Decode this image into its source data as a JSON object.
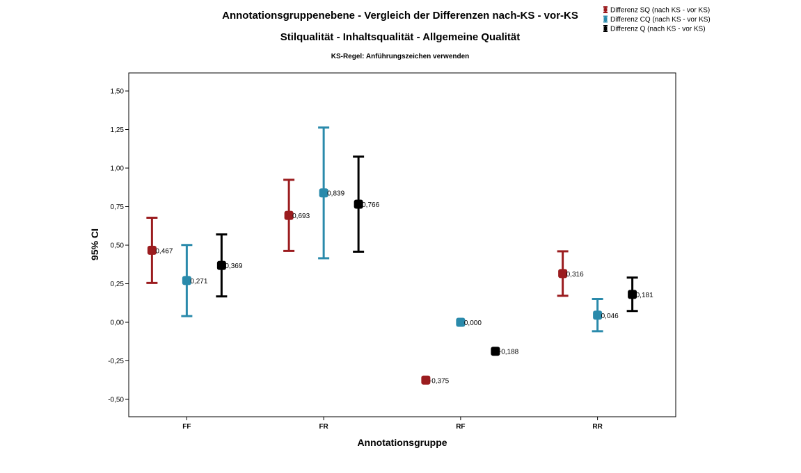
{
  "chart_data": {
    "type": "errorbar",
    "title": "Annotationsgruppenebene - Vergleich der Differenzen nach-KS - vor-KS",
    "subtitle": "Stilqualität - Inhaltsqualität - Allgemeine Qualität",
    "subtitle2": "KS-Regel: Anführungszeichen verwenden",
    "xlabel": "Annotationsgruppe",
    "ylabel": "95% CI",
    "ylim": [
      -0.6,
      1.6
    ],
    "yticks": [
      "1,50",
      "1,25",
      "1,00",
      "0,75",
      "0,50",
      "0,25",
      "0,00",
      "-0,25",
      "-0,50"
    ],
    "ytick_values": [
      1.5,
      1.25,
      1.0,
      0.75,
      0.5,
      0.25,
      0.0,
      -0.25,
      -0.5
    ],
    "categories": [
      "FF",
      "FR",
      "RF",
      "RR"
    ],
    "legend_position": "top-right",
    "series": [
      {
        "name": "Differenz SQ (nach KS - vor KS)",
        "color": "#9b1c1f",
        "means": [
          0.467,
          0.693,
          -0.375,
          0.316
        ],
        "lower": [
          0.255,
          0.462,
          null,
          0.172
        ],
        "upper": [
          0.678,
          0.924,
          null,
          0.46
        ],
        "labels": [
          "0,467",
          "0,693",
          "-0,375",
          "0,316"
        ]
      },
      {
        "name": "Differenz CQ (nach KS - vor KS)",
        "color": "#2a8aab",
        "means": [
          0.271,
          0.839,
          0.0,
          0.046
        ],
        "lower": [
          0.04,
          0.415,
          null,
          -0.058
        ],
        "upper": [
          0.501,
          1.263,
          null,
          0.151
        ],
        "labels": [
          "0,271",
          "0,839",
          "0,000",
          "0,046"
        ]
      },
      {
        "name": "Differenz Q (nach KS - vor KS)",
        "color": "#000000",
        "means": [
          0.369,
          0.766,
          -0.188,
          0.181
        ],
        "lower": [
          0.168,
          0.458,
          null,
          0.073
        ],
        "upper": [
          0.57,
          1.075,
          null,
          0.29
        ],
        "labels": [
          "0,369",
          "0,766",
          "-0,188",
          "0,181"
        ]
      }
    ]
  }
}
